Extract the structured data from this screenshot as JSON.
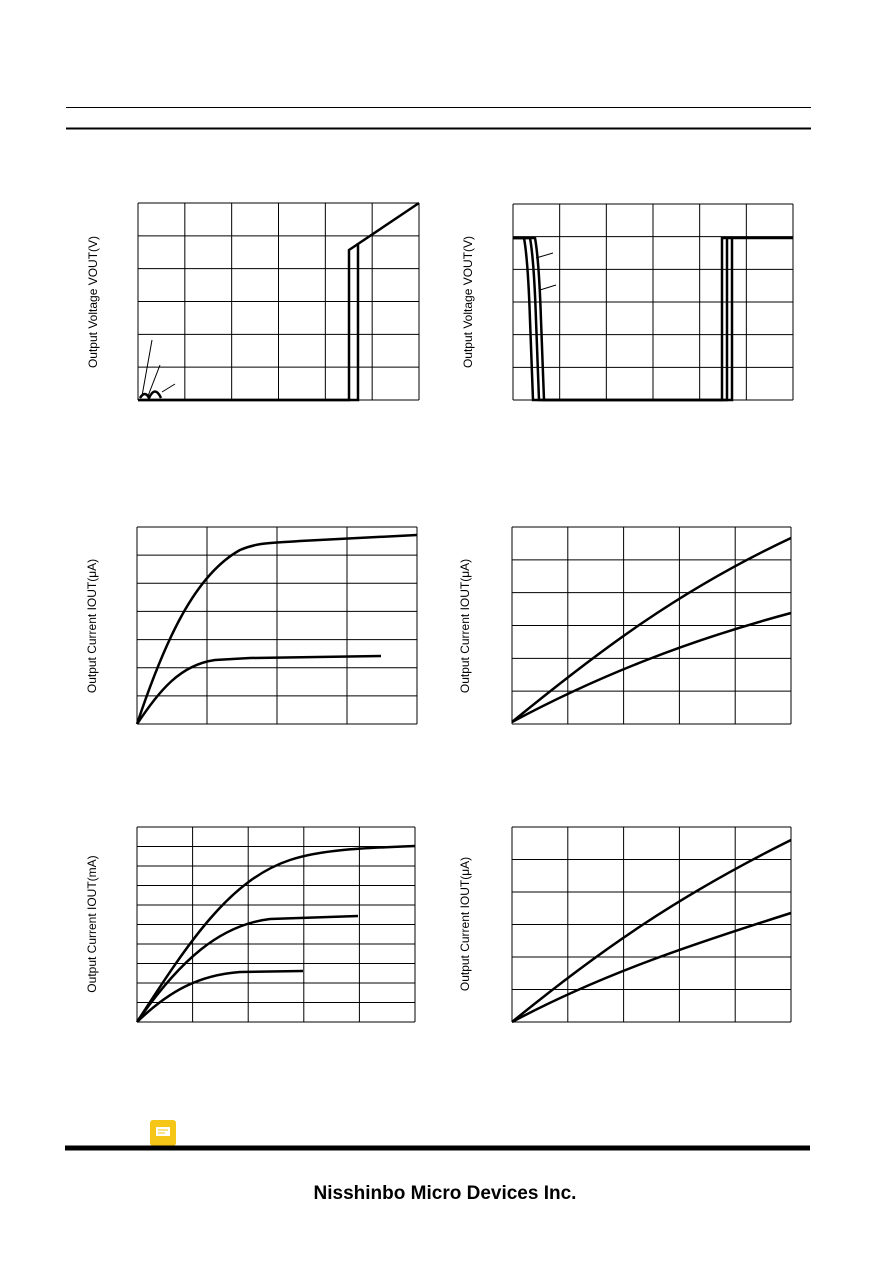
{
  "charts": [
    {
      "y_label": "Output Voltage VOUT(V)"
    },
    {
      "y_label": "Output Voltage VOUT(V)"
    },
    {
      "y_label": "Output Current IOUT(μA)"
    },
    {
      "y_label": "Output Current IOUT(μA)"
    },
    {
      "y_label": "Output Current IOUT(mA)"
    },
    {
      "y_label": "Output Current IOUT(μA)"
    }
  ],
  "footer": {
    "company": "Nisshinbo Micro Devices Inc."
  }
}
